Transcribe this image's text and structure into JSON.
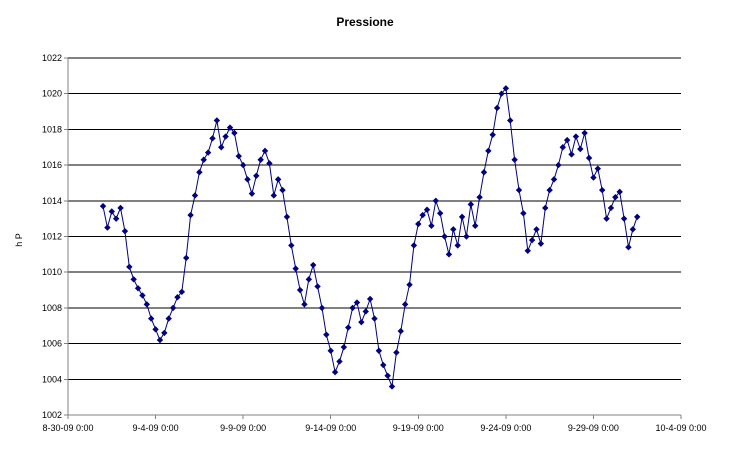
{
  "chart_data": {
    "type": "scatter",
    "title": "Pressione",
    "xlabel": "",
    "ylabel": "h P",
    "grid": "horizontal major gridlines",
    "legend": "none",
    "x_axis": {
      "min": "8-30-09 0:00",
      "max": "10-4-09 0:00",
      "tick_labels": [
        "8-30-09 0:00",
        "9-4-09 0:00",
        "9-9-09 0:00",
        "9-14-09 0:00",
        "9-19-09 0:00",
        "9-24-09 0:00",
        "9-29-09 0:00",
        "10-4-09 0:00"
      ]
    },
    "y_axis": {
      "min": 1002,
      "max": 1022,
      "tick_labels": [
        "1002",
        "1004",
        "1006",
        "1008",
        "1010",
        "1012",
        "1014",
        "1016",
        "1018",
        "1020",
        "1022"
      ]
    },
    "series": [
      {
        "marker": "diamond",
        "color": "#000080",
        "points": [
          [
            "9-1-09 0:00",
            1013.7
          ],
          [
            "9-1-09 6:00",
            1012.5
          ],
          [
            "9-1-09 12:00",
            1013.4
          ],
          [
            "9-1-09 18:00",
            1013.0
          ],
          [
            "9-2-09 0:00",
            1013.6
          ],
          [
            "9-2-09 6:00",
            1012.3
          ],
          [
            "9-2-09 12:00",
            1010.3
          ],
          [
            "9-2-09 18:00",
            1009.6
          ],
          [
            "9-3-09 0:00",
            1009.1
          ],
          [
            "9-3-09 6:00",
            1008.7
          ],
          [
            "9-3-09 12:00",
            1008.2
          ],
          [
            "9-3-09 18:00",
            1007.4
          ],
          [
            "9-4-09 0:00",
            1006.8
          ],
          [
            "9-4-09 6:00",
            1006.2
          ],
          [
            "9-4-09 12:00",
            1006.6
          ],
          [
            "9-4-09 18:00",
            1007.4
          ],
          [
            "9-5-09 0:00",
            1008.0
          ],
          [
            "9-5-09 6:00",
            1008.6
          ],
          [
            "9-5-09 12:00",
            1008.9
          ],
          [
            "9-5-09 18:00",
            1010.8
          ],
          [
            "9-6-09 0:00",
            1013.2
          ],
          [
            "9-6-09 6:00",
            1014.3
          ],
          [
            "9-6-09 12:00",
            1015.6
          ],
          [
            "9-6-09 18:00",
            1016.3
          ],
          [
            "9-7-09 0:00",
            1016.7
          ],
          [
            "9-7-09 6:00",
            1017.5
          ],
          [
            "9-7-09 12:00",
            1018.5
          ],
          [
            "9-7-09 18:00",
            1017.0
          ],
          [
            "9-8-09 0:00",
            1017.6
          ],
          [
            "9-8-09 6:00",
            1018.1
          ],
          [
            "9-8-09 12:00",
            1017.8
          ],
          [
            "9-8-09 18:00",
            1016.5
          ],
          [
            "9-9-09 0:00",
            1016.0
          ],
          [
            "9-9-09 6:00",
            1015.2
          ],
          [
            "9-9-09 12:00",
            1014.4
          ],
          [
            "9-9-09 18:00",
            1015.4
          ],
          [
            "9-10-09 0:00",
            1016.3
          ],
          [
            "9-10-09 6:00",
            1016.8
          ],
          [
            "9-10-09 12:00",
            1016.1
          ],
          [
            "9-10-09 18:00",
            1014.3
          ],
          [
            "9-11-09 0:00",
            1015.2
          ],
          [
            "9-11-09 6:00",
            1014.6
          ],
          [
            "9-11-09 12:00",
            1013.1
          ],
          [
            "9-11-09 18:00",
            1011.5
          ],
          [
            "9-12-09 0:00",
            1010.2
          ],
          [
            "9-12-09 6:00",
            1009.0
          ],
          [
            "9-12-09 12:00",
            1008.2
          ],
          [
            "9-12-09 18:00",
            1009.6
          ],
          [
            "9-13-09 0:00",
            1010.4
          ],
          [
            "9-13-09 6:00",
            1009.2
          ],
          [
            "9-13-09 12:00",
            1008.0
          ],
          [
            "9-13-09 18:00",
            1006.5
          ],
          [
            "9-14-09 0:00",
            1005.6
          ],
          [
            "9-14-09 6:00",
            1004.4
          ],
          [
            "9-14-09 12:00",
            1005.0
          ],
          [
            "9-14-09 18:00",
            1005.8
          ],
          [
            "9-15-09 0:00",
            1006.9
          ],
          [
            "9-15-09 6:00",
            1008.0
          ],
          [
            "9-15-09 12:00",
            1008.3
          ],
          [
            "9-15-09 18:00",
            1007.2
          ],
          [
            "9-16-09 0:00",
            1007.8
          ],
          [
            "9-16-09 6:00",
            1008.5
          ],
          [
            "9-16-09 12:00",
            1007.4
          ],
          [
            "9-16-09 18:00",
            1005.6
          ],
          [
            "9-17-09 0:00",
            1004.8
          ],
          [
            "9-17-09 6:00",
            1004.2
          ],
          [
            "9-17-09 12:00",
            1003.6
          ],
          [
            "9-17-09 18:00",
            1005.5
          ],
          [
            "9-18-09 0:00",
            1006.7
          ],
          [
            "9-18-09 6:00",
            1008.2
          ],
          [
            "9-18-09 12:00",
            1009.3
          ],
          [
            "9-18-09 18:00",
            1011.5
          ],
          [
            "9-19-09 0:00",
            1012.7
          ],
          [
            "9-19-09 6:00",
            1013.2
          ],
          [
            "9-19-09 12:00",
            1013.5
          ],
          [
            "9-19-09 18:00",
            1012.6
          ],
          [
            "9-20-09 0:00",
            1014.0
          ],
          [
            "9-20-09 6:00",
            1013.3
          ],
          [
            "9-20-09 12:00",
            1012.0
          ],
          [
            "9-20-09 18:00",
            1011.0
          ],
          [
            "9-21-09 0:00",
            1012.4
          ],
          [
            "9-21-09 6:00",
            1011.5
          ],
          [
            "9-21-09 12:00",
            1013.1
          ],
          [
            "9-21-09 18:00",
            1012.0
          ],
          [
            "9-22-09 0:00",
            1013.8
          ],
          [
            "9-22-09 6:00",
            1012.6
          ],
          [
            "9-22-09 12:00",
            1014.2
          ],
          [
            "9-22-09 18:00",
            1015.6
          ],
          [
            "9-23-09 0:00",
            1016.8
          ],
          [
            "9-23-09 6:00",
            1017.7
          ],
          [
            "9-23-09 12:00",
            1019.2
          ],
          [
            "9-23-09 18:00",
            1020.0
          ],
          [
            "9-24-09 0:00",
            1020.3
          ],
          [
            "9-24-09 6:00",
            1018.5
          ],
          [
            "9-24-09 12:00",
            1016.3
          ],
          [
            "9-24-09 18:00",
            1014.6
          ],
          [
            "9-25-09 0:00",
            1013.3
          ],
          [
            "9-25-09 6:00",
            1011.2
          ],
          [
            "9-25-09 12:00",
            1011.8
          ],
          [
            "9-25-09 18:00",
            1012.4
          ],
          [
            "9-26-09 0:00",
            1011.6
          ],
          [
            "9-26-09 6:00",
            1013.6
          ],
          [
            "9-26-09 12:00",
            1014.6
          ],
          [
            "9-26-09 18:00",
            1015.2
          ],
          [
            "9-27-09 0:00",
            1016.0
          ],
          [
            "9-27-09 6:00",
            1017.0
          ],
          [
            "9-27-09 12:00",
            1017.4
          ],
          [
            "9-27-09 18:00",
            1016.6
          ],
          [
            "9-28-09 0:00",
            1017.6
          ],
          [
            "9-28-09 6:00",
            1016.9
          ],
          [
            "9-28-09 12:00",
            1017.8
          ],
          [
            "9-28-09 18:00",
            1016.4
          ],
          [
            "9-29-09 0:00",
            1015.3
          ],
          [
            "9-29-09 6:00",
            1015.8
          ],
          [
            "9-29-09 12:00",
            1014.6
          ],
          [
            "9-29-09 18:00",
            1013.0
          ],
          [
            "9-30-09 0:00",
            1013.6
          ],
          [
            "9-30-09 6:00",
            1014.2
          ],
          [
            "9-30-09 12:00",
            1014.5
          ],
          [
            "9-30-09 18:00",
            1013.0
          ],
          [
            "10-1-09 0:00",
            1011.4
          ],
          [
            "10-1-09 6:00",
            1012.4
          ],
          [
            "10-1-09 12:00",
            1013.1
          ]
        ]
      }
    ]
  }
}
